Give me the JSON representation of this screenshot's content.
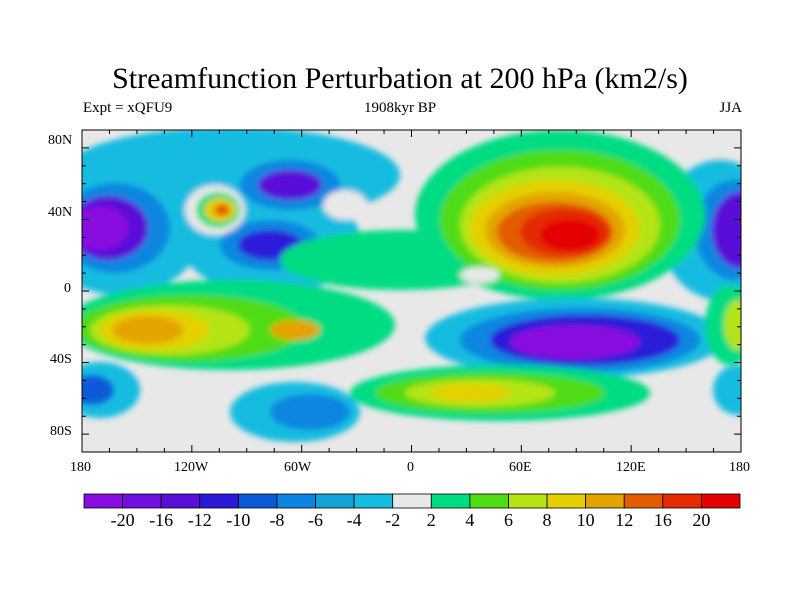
{
  "title": "Streamfunction Perturbation at 200 hPa (km2/s)",
  "left_subtitle": "Expt = xQFU9",
  "center_subtitle": "1908kyr BP",
  "right_subtitle": "JJA",
  "lat_labels": [
    "80N",
    "40N",
    "0",
    "40S",
    "80S"
  ],
  "lon_labels": [
    "180",
    "120W",
    "60W",
    "0",
    "60E",
    "120E",
    "180"
  ],
  "colorbar": {
    "labels": [
      "-20",
      "-16",
      "-12",
      "-10",
      "-8",
      "-6",
      "-4",
      "-2",
      "2",
      "4",
      "6",
      "8",
      "10",
      "12",
      "16",
      "20"
    ],
    "colors": [
      "#8a0ce0",
      "#7010de",
      "#5a0ed8",
      "#2a1ad8",
      "#0a5ad8",
      "#0a86e0",
      "#12a4d8",
      "#14bce0",
      "#e8e8e8",
      "#00dc82",
      "#50dc14",
      "#b4e414",
      "#e4d000",
      "#e4a400",
      "#e45c00",
      "#e42c00",
      "#e40000"
    ]
  }
}
